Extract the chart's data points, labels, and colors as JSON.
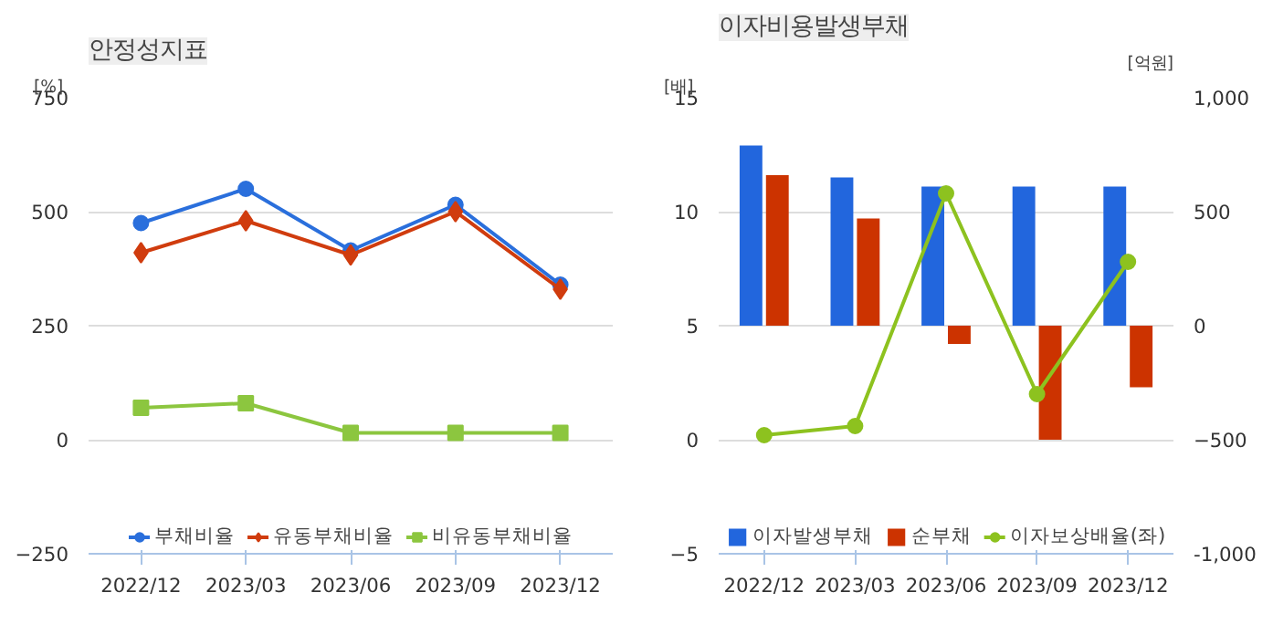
{
  "chart_data": [
    {
      "type": "line",
      "title": "안정성지표",
      "ylabel": "[%]",
      "categories": [
        "2022/12",
        "2023/03",
        "2023/06",
        "2023/09",
        "2023/12"
      ],
      "ylim": [
        -250,
        750
      ],
      "yticks": [
        -250,
        0,
        250,
        500,
        750
      ],
      "grid": "y",
      "legend": "bottom",
      "line_style": "solid",
      "series": [
        {
          "name": "부채비율",
          "color": "#2a6fdc",
          "marker": "circle",
          "values": [
            475,
            550,
            415,
            515,
            340
          ]
        },
        {
          "name": "유동부채비율",
          "color": "#d03c0e",
          "marker": "diamond",
          "values": [
            410,
            480,
            405,
            500,
            330
          ]
        },
        {
          "name": "비유동부채비율",
          "color": "#8cc63f",
          "marker": "square",
          "values": [
            70,
            80,
            15,
            15,
            15
          ]
        }
      ]
    },
    {
      "type": "bar",
      "title": "이자비용발생부채",
      "ylabel": "[배]",
      "y2label": "[억원]",
      "categories": [
        "2022/12",
        "2023/03",
        "2023/06",
        "2023/09",
        "2023/12"
      ],
      "ylim": [
        -5,
        15
      ],
      "yticks": [
        -5,
        0,
        5,
        10,
        15
      ],
      "y2lim": [
        -1000,
        1000
      ],
      "y2ticks": [
        {
          "value": -1000,
          "label": "-1,000"
        },
        -500,
        0,
        500,
        {
          "value": 1000,
          "label": "1,000"
        }
      ],
      "grid": "y",
      "legend": "bottom",
      "series": [
        {
          "name": "이자발생부채",
          "color": "#2266dd",
          "axis": "y2",
          "values": [
            790,
            650,
            610,
            610,
            610
          ]
        },
        {
          "name": "순부채",
          "color": "#cc3300",
          "axis": "y2",
          "values": [
            660,
            470,
            -80,
            -500,
            -270
          ]
        },
        {
          "name": "이자보상배율(좌)",
          "type": "line",
          "color": "#8dc21f",
          "marker": "circle",
          "axis": "y",
          "values": [
            0.2,
            0.6,
            10.8,
            2.0,
            7.8
          ]
        }
      ]
    }
  ]
}
